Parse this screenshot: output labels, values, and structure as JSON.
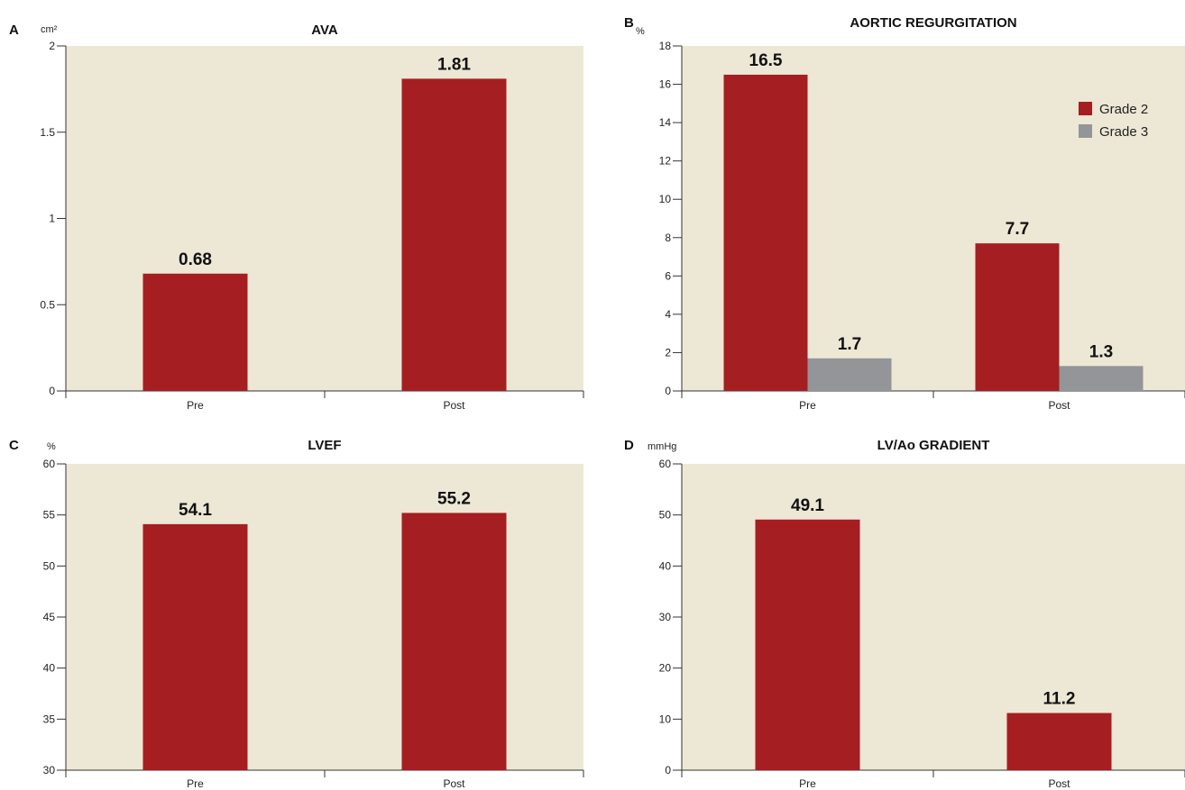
{
  "chart_data": [
    {
      "panel": "A",
      "type": "bar",
      "title": "AVA",
      "unit": "cm²",
      "categories": [
        "Pre",
        "Post"
      ],
      "series": [
        {
          "values": [
            0.68,
            1.81
          ],
          "color": "#a51e22"
        }
      ],
      "data_labels": [
        [
          "0.68",
          "1.81"
        ]
      ],
      "yticks": [
        "0",
        "0.5",
        "1",
        "1.5",
        "2"
      ],
      "ylim": [
        0,
        2
      ],
      "background": "#ede7d5"
    },
    {
      "panel": "B",
      "type": "bar",
      "title": "AORTIC REGURGITATION",
      "unit": "%",
      "categories": [
        "Pre",
        "Post"
      ],
      "series": [
        {
          "name": "Grade 2",
          "values": [
            16.5,
            7.7
          ],
          "color": "#a51e22"
        },
        {
          "name": "Grade 3",
          "values": [
            1.7,
            1.3
          ],
          "color": "#939598"
        }
      ],
      "data_labels": [
        [
          "16.5",
          "7.7"
        ],
        [
          "1.7",
          "1.3"
        ]
      ],
      "yticks": [
        "0",
        "2",
        "4",
        "6",
        "8",
        "10",
        "12",
        "14",
        "16",
        "18"
      ],
      "ylim": [
        0,
        18
      ],
      "legend": "top-right",
      "background": "#ede7d5"
    },
    {
      "panel": "C",
      "type": "bar",
      "title": "LVEF",
      "unit": "%",
      "categories": [
        "Pre",
        "Post"
      ],
      "series": [
        {
          "values": [
            54.1,
            55.2
          ],
          "color": "#a51e22"
        }
      ],
      "data_labels": [
        [
          "54.1",
          "55.2"
        ]
      ],
      "yticks": [
        "30",
        "35",
        "40",
        "45",
        "50",
        "55",
        "60"
      ],
      "ylim": [
        30,
        60
      ],
      "background": "#ede7d5"
    },
    {
      "panel": "D",
      "type": "bar",
      "title": "LV/Ao GRADIENT",
      "unit": "mmHg",
      "categories": [
        "Pre",
        "Post"
      ],
      "series": [
        {
          "values": [
            49.1,
            11.2
          ],
          "color": "#a51e22"
        }
      ],
      "data_labels": [
        [
          "49.1",
          "11.2"
        ]
      ],
      "yticks": [
        "0",
        "10",
        "20",
        "30",
        "40",
        "50",
        "60"
      ],
      "ylim": [
        0,
        60
      ],
      "background": "#ede7d5"
    }
  ]
}
